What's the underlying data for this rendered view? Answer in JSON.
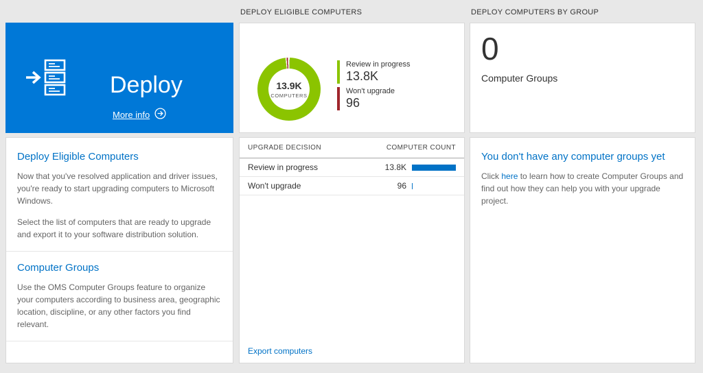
{
  "headers": {
    "middle": "DEPLOY ELIGIBLE COMPUTERS",
    "right": "DEPLOY COMPUTERS BY GROUP"
  },
  "deploy_tile": {
    "title": "Deploy",
    "more_info_label": "More info",
    "bg_color": "#0078d7"
  },
  "left_panel": {
    "section1_title": "Deploy Eligible Computers",
    "section1_p1": "Now that you've resolved application and driver issues, you're ready to start upgrading computers to Microsoft Windows.",
    "section1_p2": "Select the list of computers that are ready to upgrade and export it to your software distribution solution.",
    "section2_title": "Computer Groups",
    "section2_p1": "Use the OMS Computer Groups feature to organize your computers according to business area, geographic location, discipline, or any other factors you find relevant."
  },
  "chart_data": {
    "type": "pie",
    "title": "DEPLOY ELIGIBLE COMPUTERS",
    "center_value": "13.9K",
    "center_label": "COMPUTERS",
    "legend_position": "right",
    "slices": [
      {
        "label": "Review in progress",
        "value": "13.8K",
        "numeric": 13800,
        "color": "#8bc400"
      },
      {
        "label": "Won't upgrade",
        "value": "96",
        "numeric": 96,
        "color": "#a0262c"
      }
    ]
  },
  "table": {
    "col1": "UPGRADE DECISION",
    "col2": "COMPUTER COUNT",
    "rows": [
      {
        "decision": "Review in progress",
        "count": "13.8K",
        "numeric": 13800,
        "bar_pct": 100
      },
      {
        "decision": "Won't upgrade",
        "count": "96",
        "numeric": 96,
        "bar_pct": 1.5
      }
    ],
    "export_link": "Export computers",
    "bar_color": "#0072c6"
  },
  "groups_tile": {
    "count": "0",
    "label": "Computer Groups"
  },
  "right_panel": {
    "title": "You don't have any computer groups yet",
    "p_before": "Click ",
    "link_text": "here",
    "p_after": " to learn how to create Computer Groups and find out how they can help you with your upgrade project."
  }
}
